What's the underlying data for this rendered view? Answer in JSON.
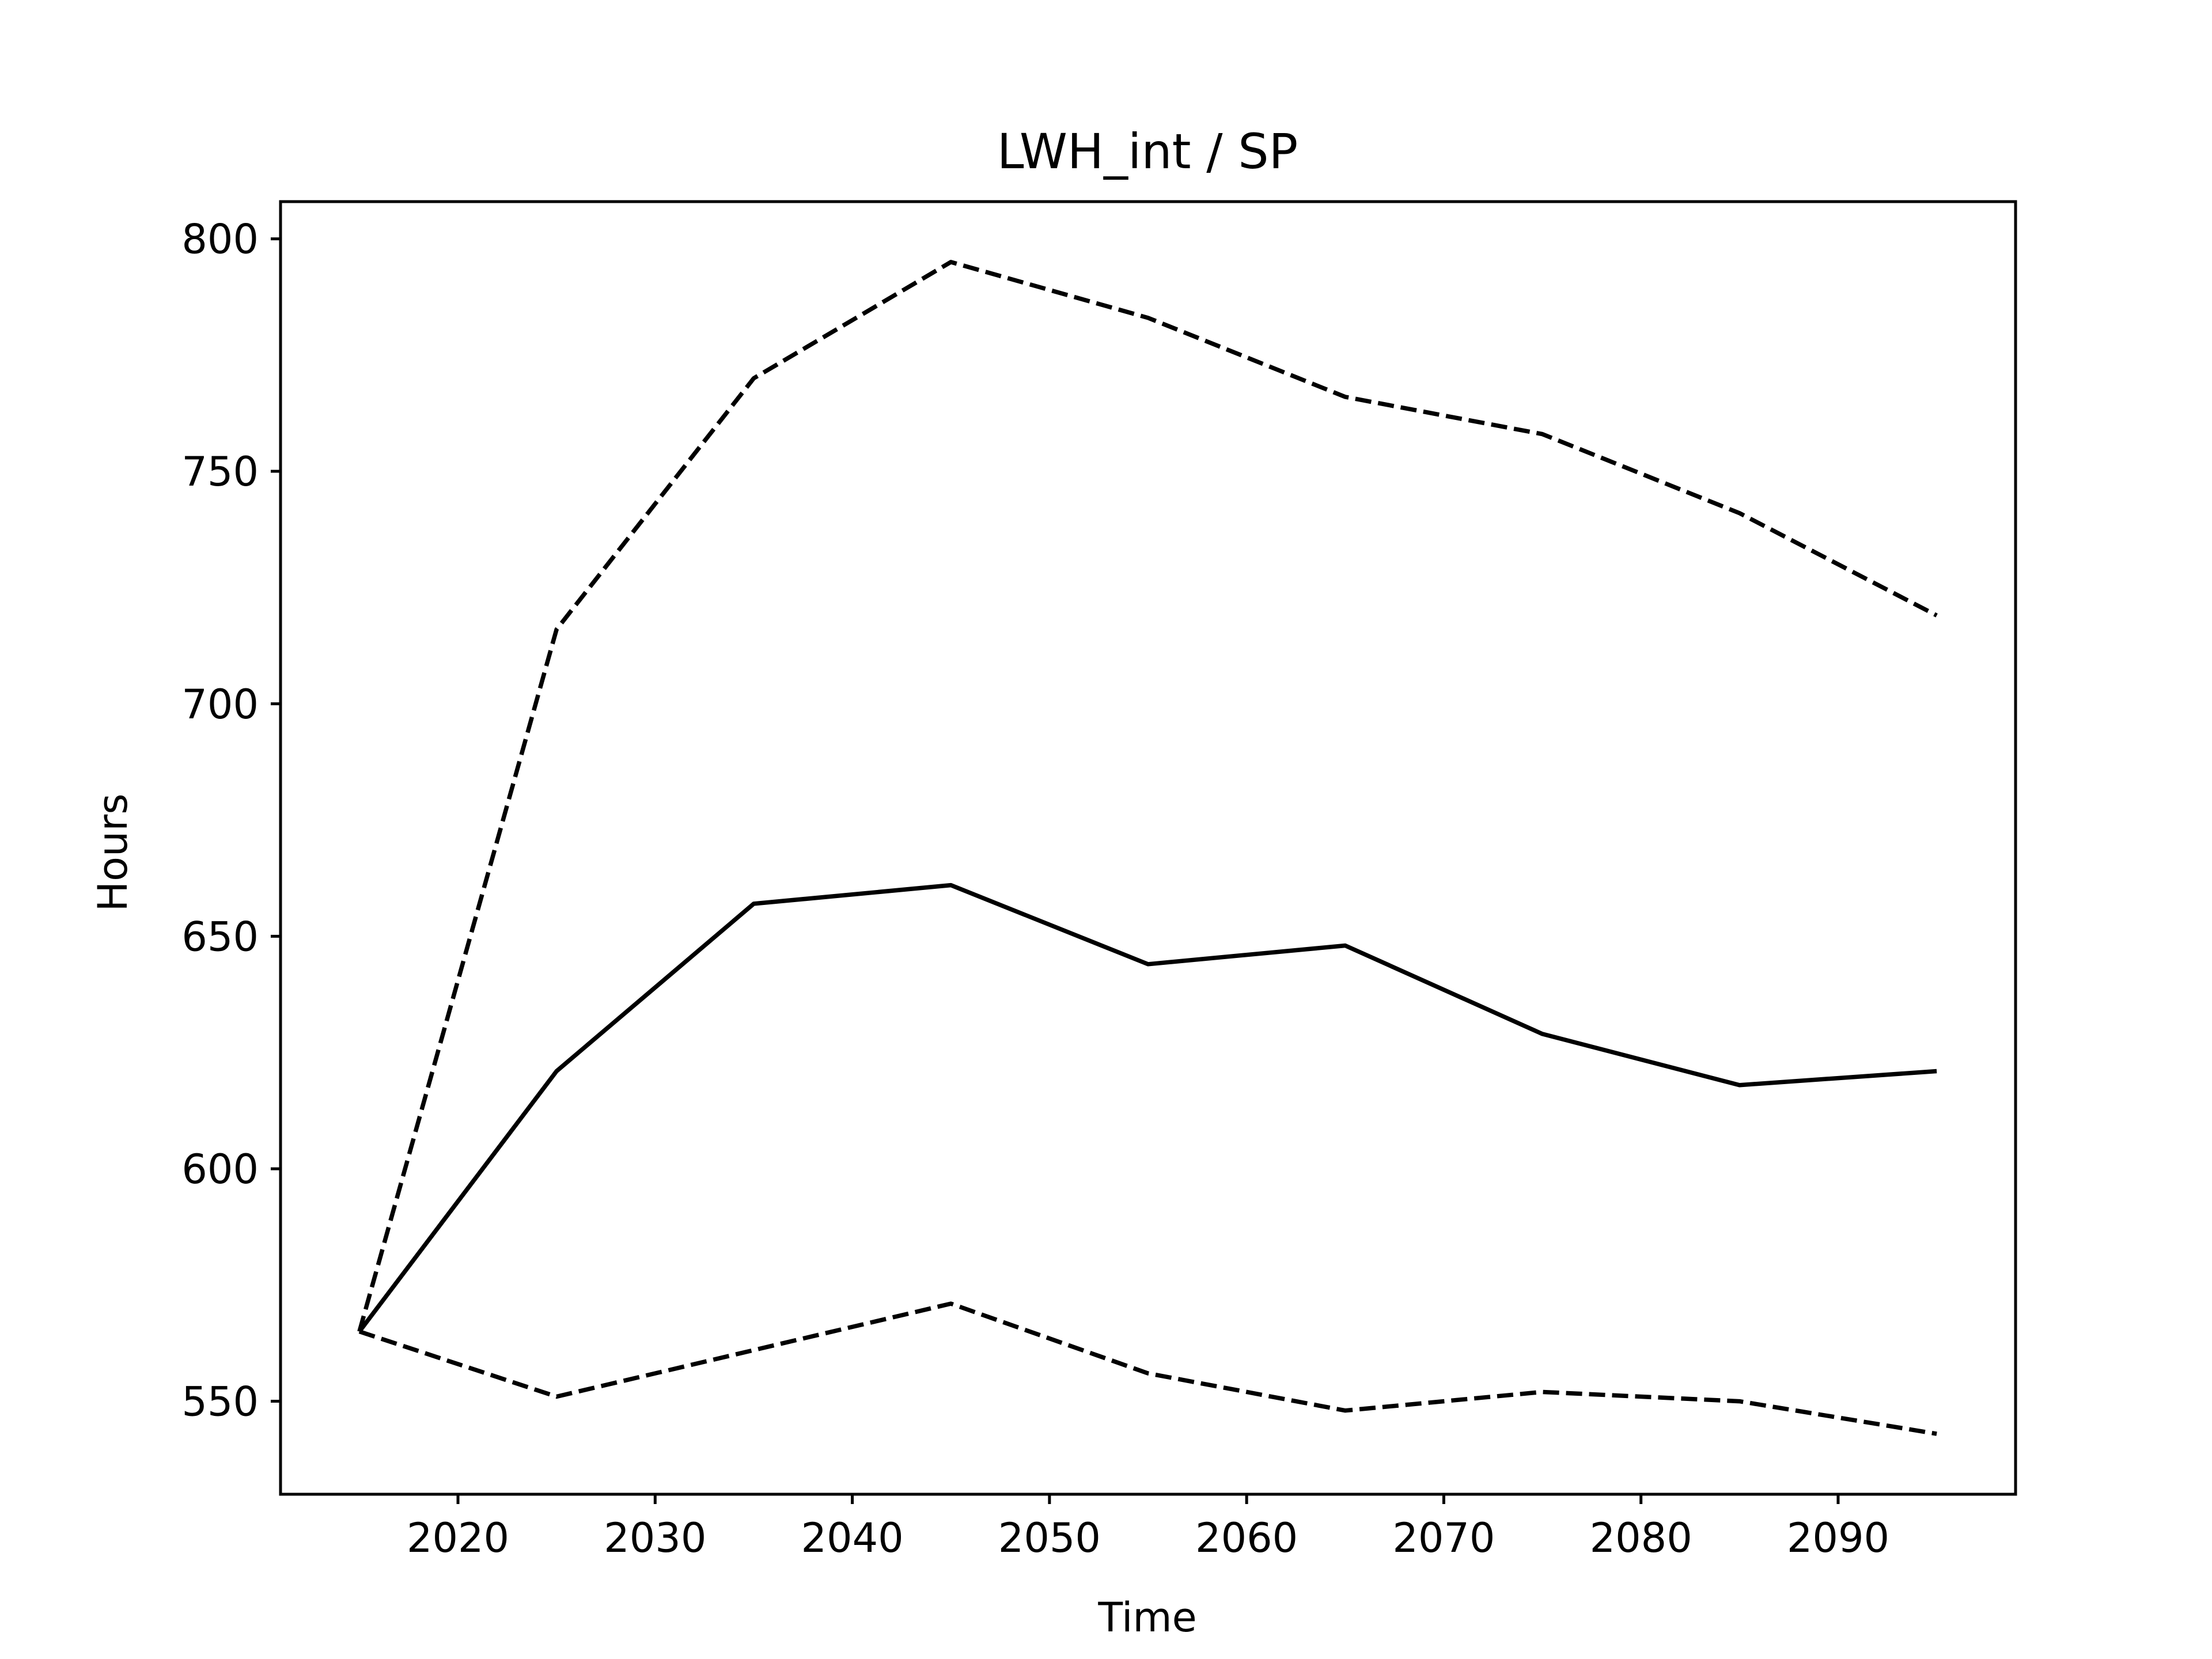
{
  "chart_data": {
    "type": "line",
    "title": "LWH_int / SP",
    "xlabel": "Time",
    "ylabel": "Hours",
    "xlim": [
      2011,
      2099
    ],
    "ylim": [
      530,
      808
    ],
    "x_ticks": [
      2020,
      2030,
      2040,
      2050,
      2060,
      2070,
      2080,
      2090
    ],
    "y_ticks": [
      550,
      600,
      650,
      700,
      750,
      800
    ],
    "x_tick_labels": [
      "2020",
      "2030",
      "2040",
      "2050",
      "2060",
      "2070",
      "2080",
      "2090"
    ],
    "y_tick_labels": [
      "550",
      "600",
      "650",
      "700",
      "750",
      "800"
    ],
    "grid": false,
    "legend": "none",
    "x": [
      2015,
      2025,
      2035,
      2045,
      2055,
      2065,
      2075,
      2085,
      2095
    ],
    "series": [
      {
        "style": "dashed",
        "color": "#000000",
        "values": [
          565,
          716,
          770,
          795,
          783,
          766,
          758,
          741,
          719
        ]
      },
      {
        "style": "solid",
        "color": "#000000",
        "values": [
          565,
          621,
          657,
          661,
          644,
          648,
          629,
          618,
          621
        ]
      },
      {
        "style": "dashed",
        "color": "#000000",
        "values": [
          565,
          551,
          561,
          571,
          556,
          548,
          552,
          550,
          543
        ]
      }
    ]
  }
}
